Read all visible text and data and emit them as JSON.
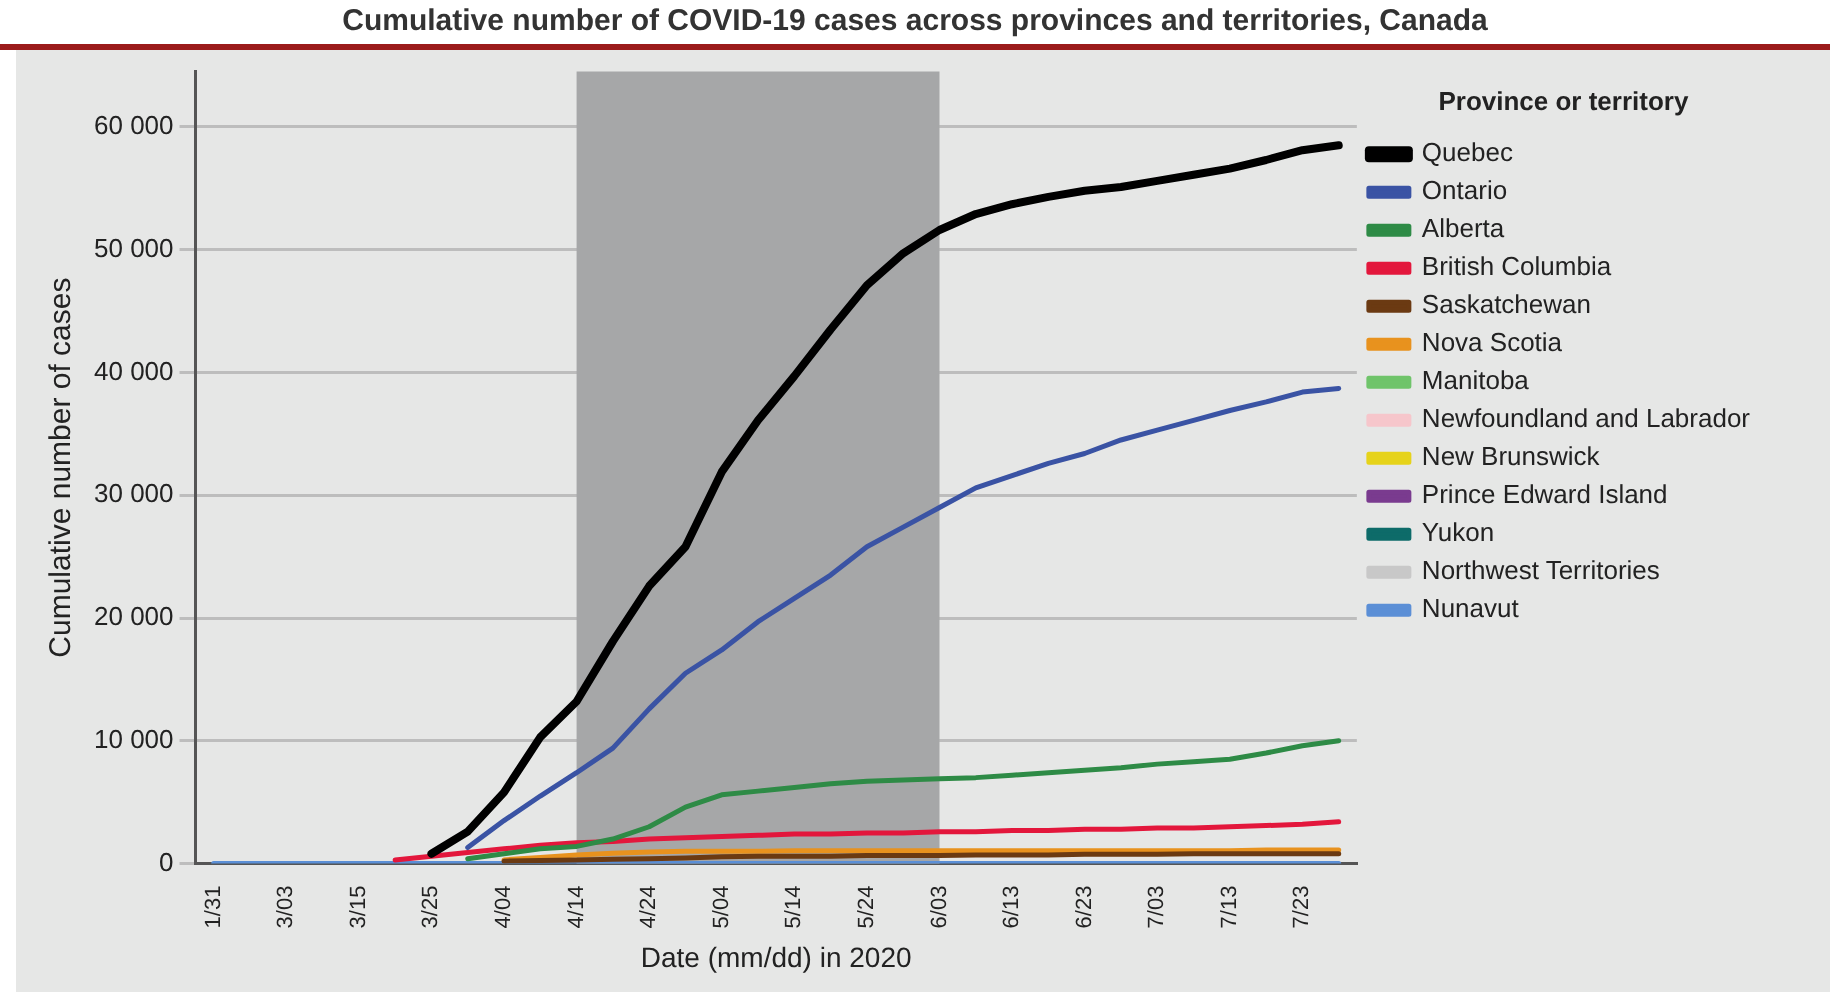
{
  "chart_data": {
    "type": "line",
    "title": "Cumulative number of COVID-19 cases across provinces and territories, Canada",
    "xlabel": "Date (mm/dd) in 2020",
    "ylabel": "Cumulative number of cases",
    "legend_title": "Province or territory",
    "categories": [
      "1/31",
      null,
      "3/03",
      null,
      "3/15",
      null,
      "3/25",
      null,
      "4/04",
      null,
      "4/14",
      null,
      "4/24",
      null,
      "5/04",
      null,
      "5/14",
      null,
      "5/24",
      null,
      "6/03",
      null,
      "6/13",
      null,
      "6/23",
      null,
      "7/03",
      null,
      "7/13",
      null,
      "7/23",
      null
    ],
    "series": [
      {
        "name": "Quebec",
        "color": "#000000",
        "values": [
          null,
          null,
          null,
          null,
          null,
          null,
          800,
          2600,
          5800,
          10300,
          13200,
          18100,
          22600,
          25800,
          31900,
          36100,
          39700,
          43500,
          47100,
          49700,
          51600,
          52900,
          53700,
          54300,
          54800,
          55100,
          55600,
          56100,
          56600,
          57300,
          58100,
          58500
        ]
      },
      {
        "name": "Ontario",
        "color": "#3a53a4",
        "values": [
          null,
          null,
          null,
          null,
          null,
          null,
          null,
          1300,
          3500,
          5500,
          7400,
          9400,
          12600,
          15500,
          17400,
          19700,
          21600,
          23500,
          25800,
          27400,
          29000,
          30600,
          31600,
          32600,
          33400,
          34500,
          35300,
          36100,
          36900,
          37600,
          38400,
          38700
        ]
      },
      {
        "name": "Alberta",
        "color": "#2e8b46",
        "values": [
          null,
          null,
          null,
          null,
          null,
          null,
          null,
          400,
          800,
          1200,
          1400,
          2000,
          3000,
          4600,
          5600,
          5900,
          6200,
          6500,
          6700,
          6800,
          6900,
          7000,
          7200,
          7400,
          7600,
          7800,
          8100,
          8300,
          8500,
          9000,
          9600,
          10000
        ]
      },
      {
        "name": "British Columbia",
        "color": "#e3173c",
        "values": [
          null,
          null,
          null,
          null,
          null,
          300,
          600,
          900,
          1200,
          1500,
          1700,
          1800,
          2000,
          2100,
          2200,
          2300,
          2400,
          2400,
          2500,
          2500,
          2600,
          2600,
          2700,
          2700,
          2800,
          2800,
          2900,
          2900,
          3000,
          3100,
          3200,
          3400
        ]
      },
      {
        "name": "Saskatchewan",
        "color": "#6b3a12",
        "values": [
          null,
          null,
          null,
          null,
          null,
          null,
          null,
          null,
          200,
          250,
          300,
          350,
          400,
          450,
          550,
          600,
          600,
          600,
          650,
          650,
          650,
          700,
          700,
          700,
          750,
          750,
          750,
          800,
          800,
          800,
          800,
          800
        ]
      },
      {
        "name": "Nova Scotia",
        "color": "#e8921e",
        "values": [
          null,
          null,
          null,
          null,
          null,
          null,
          null,
          null,
          300,
          500,
          700,
          850,
          950,
          1000,
          1000,
          1000,
          1050,
          1050,
          1050,
          1050,
          1050,
          1050,
          1050,
          1050,
          1050,
          1050,
          1050,
          1050,
          1050,
          1100,
          1100,
          1100
        ]
      },
      {
        "name": "Manitoba",
        "color": "#6fc46a",
        "values": [
          null,
          null,
          null,
          null,
          null,
          null,
          null,
          null,
          null,
          null,
          null,
          null,
          null,
          null,
          null,
          null,
          null,
          null,
          null,
          null,
          null,
          null,
          null,
          null,
          null,
          null,
          null,
          null,
          null,
          null,
          null,
          null
        ]
      },
      {
        "name": "Newfoundland and Labrador",
        "color": "#f6c6cb",
        "values": [
          null,
          null,
          null,
          null,
          null,
          null,
          null,
          null,
          null,
          null,
          null,
          null,
          null,
          null,
          null,
          null,
          null,
          null,
          null,
          null,
          null,
          null,
          null,
          null,
          null,
          null,
          null,
          null,
          null,
          null,
          null,
          null
        ]
      },
      {
        "name": "New Brunswick",
        "color": "#e6d31a",
        "values": [
          null,
          null,
          null,
          null,
          null,
          null,
          null,
          null,
          null,
          null,
          null,
          null,
          null,
          null,
          null,
          null,
          null,
          null,
          null,
          null,
          null,
          null,
          null,
          null,
          null,
          null,
          null,
          null,
          null,
          null,
          null,
          null
        ]
      },
      {
        "name": "Prince Edward Island",
        "color": "#7a3b8f",
        "values": [
          null,
          null,
          null,
          null,
          null,
          null,
          null,
          null,
          null,
          null,
          null,
          null,
          null,
          null,
          null,
          null,
          null,
          null,
          null,
          null,
          null,
          null,
          null,
          null,
          null,
          null,
          null,
          null,
          null,
          null,
          null,
          null
        ]
      },
      {
        "name": "Yukon",
        "color": "#0d6b69",
        "values": [
          null,
          null,
          null,
          null,
          null,
          null,
          null,
          null,
          null,
          null,
          null,
          null,
          null,
          null,
          null,
          null,
          null,
          null,
          null,
          null,
          null,
          null,
          null,
          null,
          null,
          null,
          null,
          null,
          null,
          null,
          null,
          null
        ]
      },
      {
        "name": "Northwest Territories",
        "color": "#c8c8c8",
        "values": [
          null,
          null,
          null,
          null,
          null,
          null,
          null,
          null,
          null,
          null,
          null,
          null,
          null,
          null,
          null,
          null,
          null,
          null,
          null,
          null,
          null,
          null,
          null,
          null,
          null,
          null,
          null,
          null,
          null,
          null,
          null,
          null
        ]
      },
      {
        "name": "Nunavut",
        "color": "#5b8fd6",
        "values": [
          0,
          0,
          0,
          0,
          0,
          0,
          0,
          0,
          0,
          0,
          0,
          0,
          0,
          0,
          0,
          0,
          0,
          0,
          0,
          0,
          0,
          0,
          0,
          0,
          0,
          0,
          0,
          0,
          0,
          0,
          0,
          0
        ]
      }
    ],
    "ylim": [
      0,
      64500
    ],
    "yticks": [
      {
        "value": 0,
        "label": "0"
      },
      {
        "value": 10000,
        "label": "10 000"
      },
      {
        "value": 20000,
        "label": "20 000"
      },
      {
        "value": 30000,
        "label": "30 000"
      },
      {
        "value": 40000,
        "label": "40 000"
      },
      {
        "value": 50000,
        "label": "50 000"
      },
      {
        "value": 60000,
        "label": "60 000"
      }
    ],
    "bands": [
      {
        "axis": "x",
        "from": "4/14",
        "to": "6/03",
        "color": "#a6a7a8"
      }
    ],
    "grid": "y",
    "legend": "right",
    "marker": "none",
    "line_style": "solid"
  }
}
